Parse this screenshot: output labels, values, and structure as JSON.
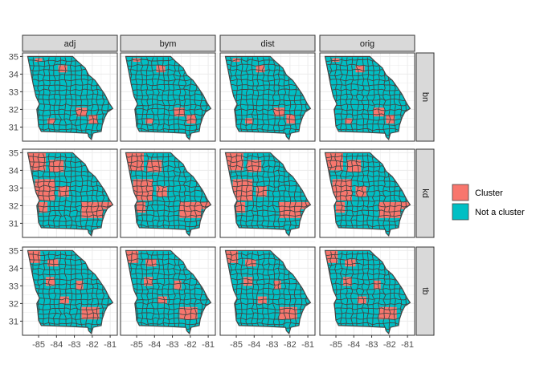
{
  "chart_data": {
    "type": "choropleth-facet",
    "columns": [
      "adj",
      "bym",
      "dist",
      "orig"
    ],
    "rows": [
      "bn",
      "kd",
      "tb"
    ],
    "x_ticks": [
      -85,
      -84,
      -83,
      -82,
      -81
    ],
    "y_ticks": [
      31,
      32,
      33,
      34,
      35
    ],
    "x_tick_labels": [
      "-85",
      "-84",
      "-83",
      "-82",
      "-81"
    ],
    "y_tick_labels": [
      "31",
      "32",
      "33",
      "34",
      "35"
    ],
    "xlim": [
      -85.9,
      -80.6
    ],
    "ylim": [
      30.2,
      35.2
    ],
    "grid": true,
    "legend_position": "right",
    "legend": [
      {
        "label": "Cluster",
        "color": "#F8766D"
      },
      {
        "label": "Not a cluster",
        "color": "#00BFC4"
      }
    ],
    "cluster_regions": {
      "bn": [
        [
          [
            -85.2,
            34.9
          ],
          [
            -84.8,
            34.7
          ]
        ],
        [
          [
            -83.9,
            34.5
          ],
          [
            -83.4,
            34.1
          ]
        ],
        [
          [
            -82.9,
            32.1
          ],
          [
            -82.3,
            31.6
          ]
        ],
        [
          [
            -82.2,
            31.7
          ],
          [
            -81.7,
            31.2
          ]
        ],
        [
          [
            -84.5,
            31.5
          ],
          [
            -84.1,
            31.2
          ]
        ]
      ],
      "kd": [
        [
          [
            -85.6,
            35.0
          ],
          [
            -84.6,
            34.0
          ]
        ],
        [
          [
            -84.4,
            34.6
          ],
          [
            -83.6,
            33.9
          ]
        ],
        [
          [
            -85.2,
            33.5
          ],
          [
            -84.1,
            32.3
          ]
        ],
        [
          [
            -83.9,
            33.1
          ],
          [
            -83.3,
            32.5
          ]
        ],
        [
          [
            -85.0,
            32.2
          ],
          [
            -84.5,
            31.6
          ]
        ],
        [
          [
            -82.6,
            32.2
          ],
          [
            -81.4,
            31.3
          ]
        ],
        [
          [
            -81.4,
            32.2
          ],
          [
            -80.9,
            31.8
          ]
        ]
      ],
      "tb": [
        [
          [
            -85.6,
            35.0
          ],
          [
            -84.9,
            34.3
          ]
        ],
        [
          [
            -84.5,
            34.5
          ],
          [
            -83.9,
            34.1
          ]
        ],
        [
          [
            -84.6,
            33.5
          ],
          [
            -84.1,
            33.0
          ]
        ],
        [
          [
            -83.8,
            32.4
          ],
          [
            -83.3,
            32.0
          ]
        ],
        [
          [
            -82.6,
            31.8
          ],
          [
            -81.6,
            31.1
          ]
        ],
        [
          [
            -82.9,
            33.3
          ],
          [
            -82.5,
            32.8
          ]
        ]
      ]
    }
  },
  "ggplot_colors": {
    "panel_border": "#333333",
    "strip_fill": "#D9D9D9",
    "grid": "#EBEBEB",
    "county_border": "#444444"
  }
}
